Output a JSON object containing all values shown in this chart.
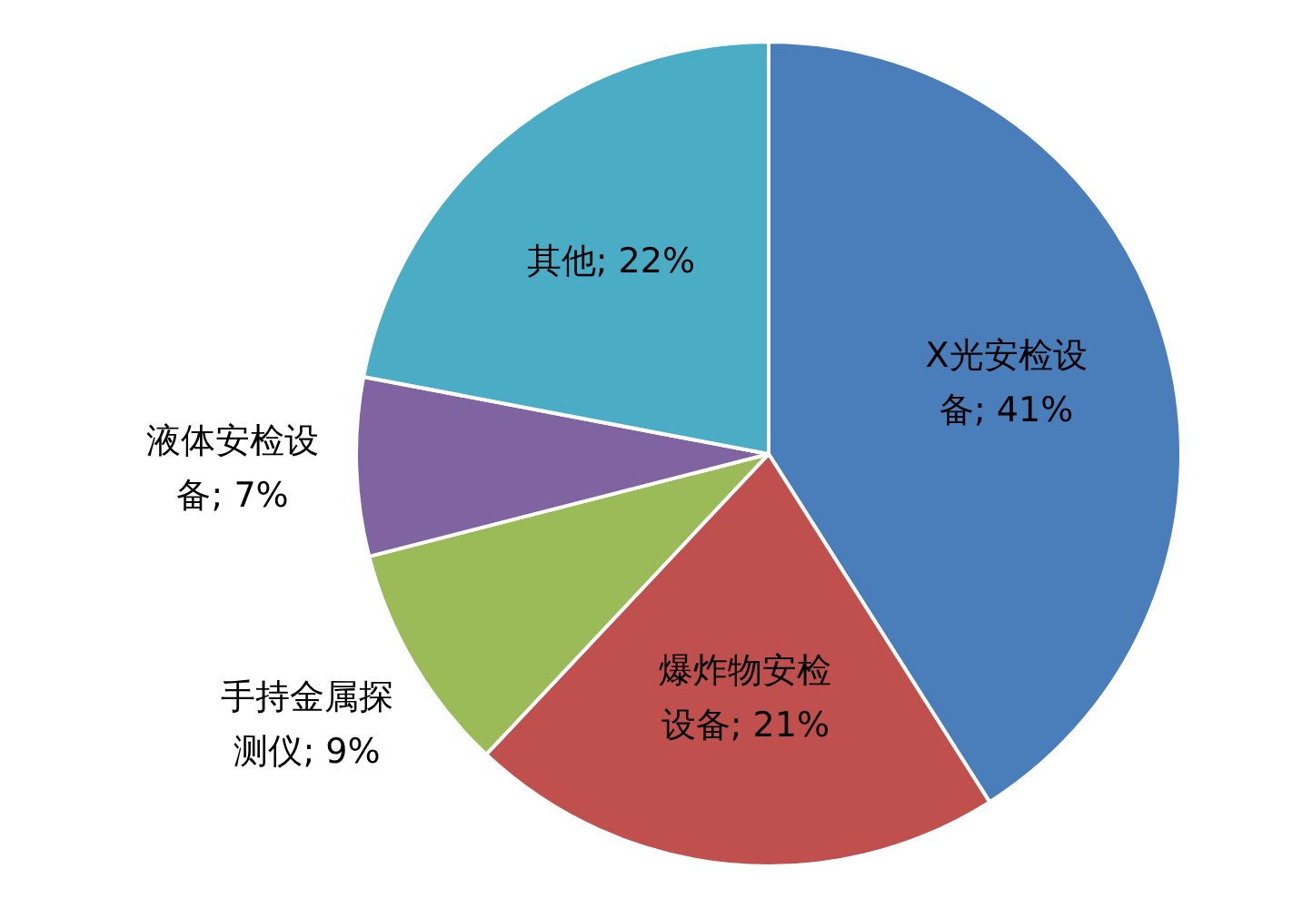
{
  "chart_data": {
    "type": "pie",
    "categories": [
      "X光安检设备",
      "爆炸物安检设备",
      "手持金属探测仪",
      "液体安检设备",
      "其他"
    ],
    "values": [
      41,
      21,
      9,
      7,
      22
    ],
    "value_labels": [
      "; 41%",
      "; 21%",
      "; 9%",
      "; 7%",
      "; 22%"
    ],
    "colors": [
      "#4a7ebb",
      "#c0504d",
      "#9bbb59",
      "#8064a2",
      "#4bacc6"
    ],
    "legend": false
  }
}
